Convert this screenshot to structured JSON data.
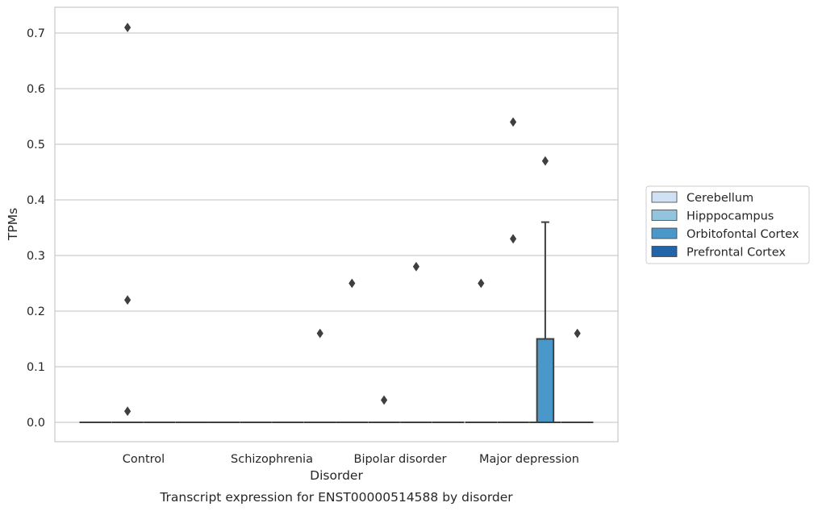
{
  "chart_data": {
    "type": "box",
    "xlabel": "Disorder",
    "ylabel": "TPMs",
    "caption": "Transcript expression for ENST00000514588 by disorder",
    "ylim": [
      -0.035,
      0.745
    ],
    "yticks": [
      "0.0",
      "0.1",
      "0.2",
      "0.3",
      "0.4",
      "0.5",
      "0.6",
      "0.7"
    ],
    "grid": "horizontal",
    "legend_placement": "right",
    "categories": [
      "Control",
      "Schizophrenia",
      "Bipolar disorder",
      "Major depression"
    ],
    "series": [
      {
        "name": "Cerebellum",
        "color": "#cfe1f2"
      },
      {
        "name": "Hipppocampus",
        "color": "#93c4de"
      },
      {
        "name": "Orbitofontal Cortex",
        "color": "#4a98c9"
      },
      {
        "name": "Prefrontal Cortex",
        "color": "#2264a9"
      }
    ],
    "boxes": [
      {
        "category": 0,
        "series": 0,
        "q1": 0,
        "median": 0,
        "q3": 0,
        "whisker_low": 0,
        "whisker_high": 0
      },
      {
        "category": 0,
        "series": 1,
        "q1": 0,
        "median": 0,
        "q3": 0,
        "whisker_low": 0,
        "whisker_high": 0
      },
      {
        "category": 0,
        "series": 2,
        "q1": 0,
        "median": 0,
        "q3": 0,
        "whisker_low": 0,
        "whisker_high": 0
      },
      {
        "category": 0,
        "series": 3,
        "q1": 0,
        "median": 0,
        "q3": 0,
        "whisker_low": 0,
        "whisker_high": 0
      },
      {
        "category": 1,
        "series": 0,
        "q1": 0,
        "median": 0,
        "q3": 0,
        "whisker_low": 0,
        "whisker_high": 0
      },
      {
        "category": 1,
        "series": 1,
        "q1": 0,
        "median": 0,
        "q3": 0,
        "whisker_low": 0,
        "whisker_high": 0
      },
      {
        "category": 1,
        "series": 2,
        "q1": 0,
        "median": 0,
        "q3": 0,
        "whisker_low": 0,
        "whisker_high": 0
      },
      {
        "category": 1,
        "series": 3,
        "q1": 0,
        "median": 0,
        "q3": 0,
        "whisker_low": 0,
        "whisker_high": 0
      },
      {
        "category": 2,
        "series": 0,
        "q1": 0,
        "median": 0,
        "q3": 0,
        "whisker_low": 0,
        "whisker_high": 0
      },
      {
        "category": 2,
        "series": 1,
        "q1": 0,
        "median": 0,
        "q3": 0,
        "whisker_low": 0,
        "whisker_high": 0
      },
      {
        "category": 2,
        "series": 2,
        "q1": 0,
        "median": 0,
        "q3": 0,
        "whisker_low": 0,
        "whisker_high": 0
      },
      {
        "category": 2,
        "series": 3,
        "q1": 0,
        "median": 0,
        "q3": 0,
        "whisker_low": 0,
        "whisker_high": 0
      },
      {
        "category": 3,
        "series": 0,
        "q1": 0,
        "median": 0,
        "q3": 0,
        "whisker_low": 0,
        "whisker_high": 0
      },
      {
        "category": 3,
        "series": 1,
        "q1": 0,
        "median": 0,
        "q3": 0,
        "whisker_low": 0,
        "whisker_high": 0
      },
      {
        "category": 3,
        "series": 2,
        "q1": 0,
        "median": 0,
        "q3": 0.15,
        "whisker_low": 0,
        "whisker_high": 0.36
      },
      {
        "category": 3,
        "series": 3,
        "q1": 0,
        "median": 0,
        "q3": 0,
        "whisker_low": 0,
        "whisker_high": 0
      }
    ],
    "outliers": [
      {
        "category": 0,
        "series": 1,
        "y": 0.71
      },
      {
        "category": 0,
        "series": 1,
        "y": 0.22
      },
      {
        "category": 0,
        "series": 1,
        "y": 0.02
      },
      {
        "category": 1,
        "series": 3,
        "y": 0.16
      },
      {
        "category": 2,
        "series": 0,
        "y": 0.25
      },
      {
        "category": 2,
        "series": 1,
        "y": 0.04
      },
      {
        "category": 2,
        "series": 2,
        "y": 0.28
      },
      {
        "category": 3,
        "series": 0,
        "y": 0.25
      },
      {
        "category": 3,
        "series": 1,
        "y": 0.54
      },
      {
        "category": 3,
        "series": 1,
        "y": 0.33
      },
      {
        "category": 3,
        "series": 2,
        "y": 0.47
      },
      {
        "category": 3,
        "series": 3,
        "y": 0.16
      }
    ]
  }
}
